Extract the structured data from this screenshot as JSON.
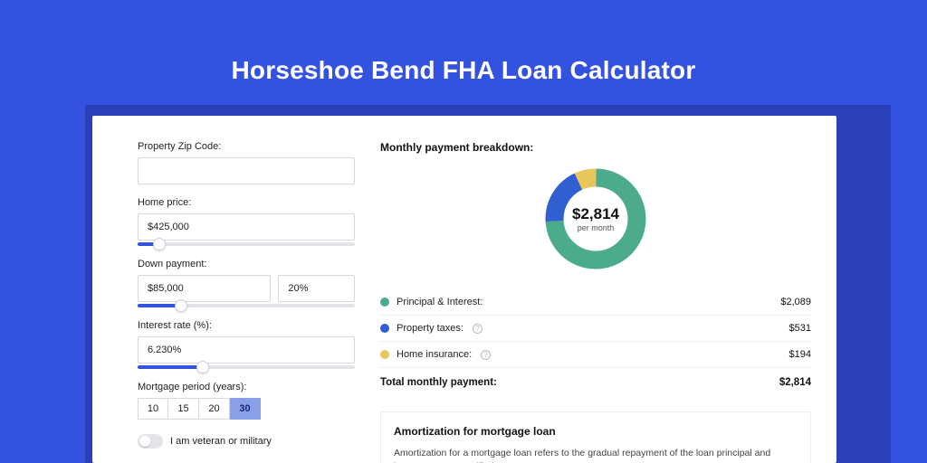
{
  "title": "Horseshoe Bend FHA Loan Calculator",
  "colors": {
    "page_bg": "#3452e0",
    "shadow_bg": "#2b3fb8",
    "card_bg": "#ffffff",
    "accent": "#3452e0",
    "series_pi": "#4bab8b",
    "series_tax": "#2f5fd0",
    "series_ins": "#e8c659"
  },
  "form": {
    "zip": {
      "label": "Property Zip Code:",
      "value": ""
    },
    "home_price": {
      "label": "Home price:",
      "value": "$425,000",
      "slider_pct": 10
    },
    "down_payment": {
      "label": "Down payment:",
      "amount": "$85,000",
      "percent": "20%",
      "slider_pct": 20
    },
    "interest_rate": {
      "label": "Interest rate (%):",
      "value": "6.230%",
      "slider_pct": 30
    },
    "mortgage_period": {
      "label": "Mortgage period (years):",
      "options": [
        "10",
        "15",
        "20",
        "30"
      ],
      "active_index": 3
    },
    "veteran": {
      "label": "I am veteran or military",
      "on": false
    }
  },
  "breakdown": {
    "title": "Monthly payment breakdown:",
    "center_value": "$2,814",
    "center_sub": "per month",
    "items": [
      {
        "name": "Principal & Interest:",
        "value": "$2,089",
        "color": "#4bab8b",
        "info": false,
        "share": 74
      },
      {
        "name": "Property taxes:",
        "value": "$531",
        "color": "#2f5fd0",
        "info": true,
        "share": 19
      },
      {
        "name": "Home insurance:",
        "value": "$194",
        "color": "#e8c659",
        "info": true,
        "share": 7
      }
    ],
    "total_label": "Total monthly payment:",
    "total_value": "$2,814"
  },
  "amortization": {
    "title": "Amortization for mortgage loan",
    "text": "Amortization for a mortgage loan refers to the gradual repayment of the loan principal and interest over a specified"
  }
}
